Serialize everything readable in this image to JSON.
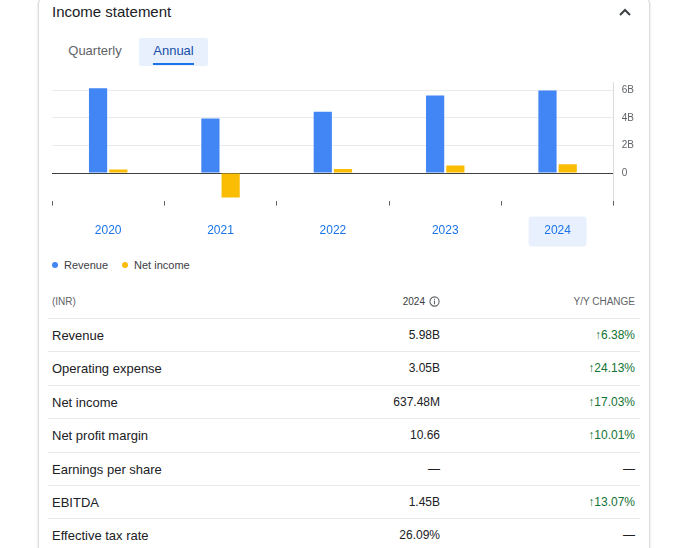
{
  "header": {
    "title": "Income statement"
  },
  "tabs": [
    {
      "label": "Quarterly",
      "selected": false
    },
    {
      "label": "Annual",
      "selected": true
    }
  ],
  "chart_data": {
    "type": "bar",
    "categories": [
      "2020",
      "2021",
      "2022",
      "2023",
      "2024"
    ],
    "series": [
      {
        "name": "Revenue",
        "color": "#4285f4",
        "values": [
          6.15,
          3.95,
          4.45,
          5.62,
          5.98
        ]
      },
      {
        "name": "Net income",
        "color": "#fbbc04",
        "values": [
          0.25,
          -1.78,
          0.3,
          0.545,
          0.63748
        ]
      }
    ],
    "ylim": [
      -2,
      6.6
    ],
    "yticks": [
      0,
      {
        "value": 2,
        "label": "2B"
      },
      {
        "value": 4,
        "label": "4B"
      },
      {
        "value": 6,
        "label": "6B"
      }
    ],
    "grid": true,
    "legend": "bottom"
  },
  "table": {
    "columns": [
      "(INR)",
      "2024",
      "Y/Y CHANGE"
    ],
    "rows": [
      [
        "Revenue",
        "5.98B",
        "↑6.38%"
      ],
      [
        "Operating expense",
        "3.05B",
        "↑24.13%"
      ],
      [
        "Net income",
        "637.48M",
        "↑17.03%"
      ],
      [
        "Net profit margin",
        "10.66",
        "↑10.01%"
      ],
      [
        "Earnings per share",
        "—",
        "—"
      ],
      [
        "EBITDA",
        "1.45B",
        "↑13.07%"
      ],
      [
        "Effective tax rate",
        "26.09%",
        "—"
      ]
    ]
  }
}
